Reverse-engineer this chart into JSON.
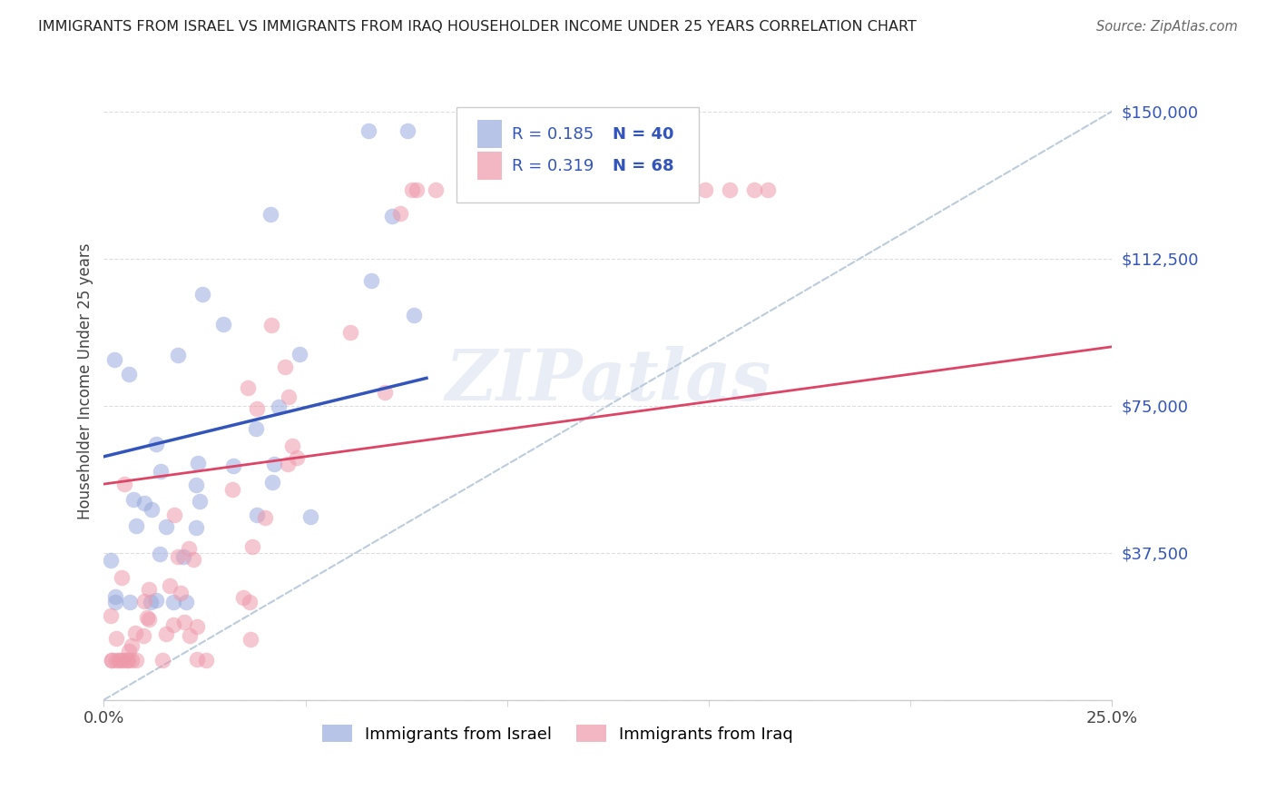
{
  "title": "IMMIGRANTS FROM ISRAEL VS IMMIGRANTS FROM IRAQ HOUSEHOLDER INCOME UNDER 25 YEARS CORRELATION CHART",
  "source": "Source: ZipAtlas.com",
  "ylabel": "Householder Income Under 25 years",
  "xlim": [
    0.0,
    0.25
  ],
  "ylim": [
    0,
    162500
  ],
  "xtick_vals": [
    0.0,
    0.25
  ],
  "xtick_labels": [
    "0.0%",
    "25.0%"
  ],
  "ytick_values": [
    0,
    37500,
    75000,
    112500,
    150000
  ],
  "ytick_labels": [
    "",
    "$37,500",
    "$75,000",
    "$112,500",
    "$150,000"
  ],
  "watermark_text": "ZIPatlas",
  "legend_r1": "R = 0.185",
  "legend_n1": "N = 40",
  "legend_r2": "R = 0.319",
  "legend_n2": "N = 68",
  "legend_label1": "Immigrants from Israel",
  "legend_label2": "Immigrants from Iraq",
  "israel_color": "#99aadd",
  "iraq_color": "#ee99aa",
  "israel_line_color": "#3355bb",
  "iraq_line_color": "#dd4466",
  "diag_line_color": "#bbccdd",
  "background_color": "#ffffff",
  "text_color_blue": "#3355bb",
  "text_color_dark": "#333333",
  "grid_color": "#dddddd"
}
